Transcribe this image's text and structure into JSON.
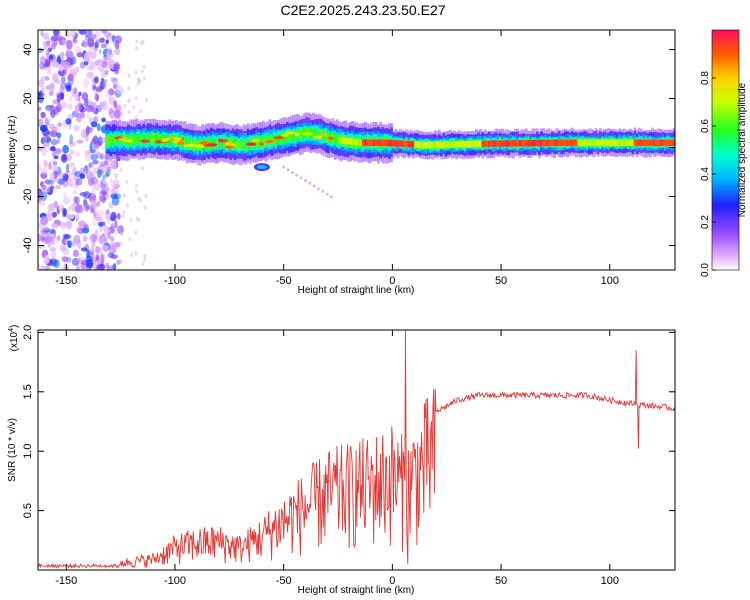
{
  "figure": {
    "title": "C2E2.2025.243.23.50.E27"
  },
  "chart_data": [
    {
      "type": "heatmap",
      "title": "C2E2.2025.243.23.50.E27",
      "xlabel": "Height of straight line (km)",
      "ylabel": "Frequency (Hz)",
      "xlim": [
        -163,
        130
      ],
      "ylim": [
        -50,
        48
      ],
      "xticks": [
        -150,
        -100,
        -50,
        0,
        50,
        100
      ],
      "yticks": [
        -40,
        -20,
        0,
        20,
        40
      ],
      "colorbar": {
        "label": "Normalized spectral amplitude",
        "range": [
          0,
          1
        ],
        "ticks": [
          0.0,
          0.2,
          0.4,
          0.6,
          0.8
        ]
      },
      "band_center": [
        [
          -130,
          3
        ],
        [
          -120,
          3
        ],
        [
          -110,
          3.5
        ],
        [
          -100,
          3
        ],
        [
          -90,
          1
        ],
        [
          -80,
          2
        ],
        [
          -70,
          1
        ],
        [
          -60,
          2.5
        ],
        [
          -50,
          4
        ],
        [
          -40,
          6
        ],
        [
          -35,
          5.5
        ],
        [
          -25,
          3
        ],
        [
          -15,
          2
        ],
        [
          -5,
          2
        ],
        [
          5,
          1.5
        ],
        [
          15,
          1
        ],
        [
          40,
          1.5
        ],
        [
          80,
          2
        ],
        [
          100,
          2
        ],
        [
          110,
          2
        ],
        [
          120,
          2
        ],
        [
          130,
          2
        ]
      ],
      "noise_region_x": [
        -163,
        -125
      ],
      "grid": false
    },
    {
      "type": "line",
      "xlabel": "Height of straight line (km)",
      "ylabel": "SNR (10 * v/v)",
      "yscale_label": "(x10",
      "yscale_exp": "4",
      "yscale_suffix": ")",
      "xlim": [
        -163,
        130
      ],
      "ylim": [
        0,
        2.02
      ],
      "xticks": [
        -150,
        -100,
        -50,
        0,
        50,
        100
      ],
      "yticks": [
        0.5,
        1.0,
        1.5,
        2.0
      ],
      "series": [
        {
          "color": "#e53935",
          "envelope": [
            [
              -163,
              0.03
            ],
            [
              -130,
              0.04
            ],
            [
              -125,
              0.08
            ],
            [
              -110,
              0.12
            ],
            [
              -100,
              0.25
            ],
            [
              -90,
              0.3
            ],
            [
              -80,
              0.32
            ],
            [
              -70,
              0.25
            ],
            [
              -60,
              0.38
            ],
            [
              -50,
              0.55
            ],
            [
              -40,
              0.7
            ],
            [
              -30,
              0.85
            ],
            [
              -20,
              0.9
            ],
            [
              -10,
              0.95
            ],
            [
              0,
              1.05
            ],
            [
              5,
              0.95
            ],
            [
              10,
              1.05
            ],
            [
              15,
              1.2
            ],
            [
              20,
              1.33
            ],
            [
              30,
              1.43
            ],
            [
              40,
              1.47
            ],
            [
              50,
              1.47
            ],
            [
              70,
              1.47
            ],
            [
              90,
              1.47
            ],
            [
              100,
              1.43
            ],
            [
              110,
              1.4
            ],
            [
              120,
              1.38
            ],
            [
              130,
              1.36
            ]
          ],
          "spikes": [
            [
              6,
              2.02
            ],
            [
              7,
              0.05
            ],
            [
              112,
              1.85
            ],
            [
              113,
              1.02
            ]
          ]
        }
      ],
      "grid": false
    }
  ]
}
